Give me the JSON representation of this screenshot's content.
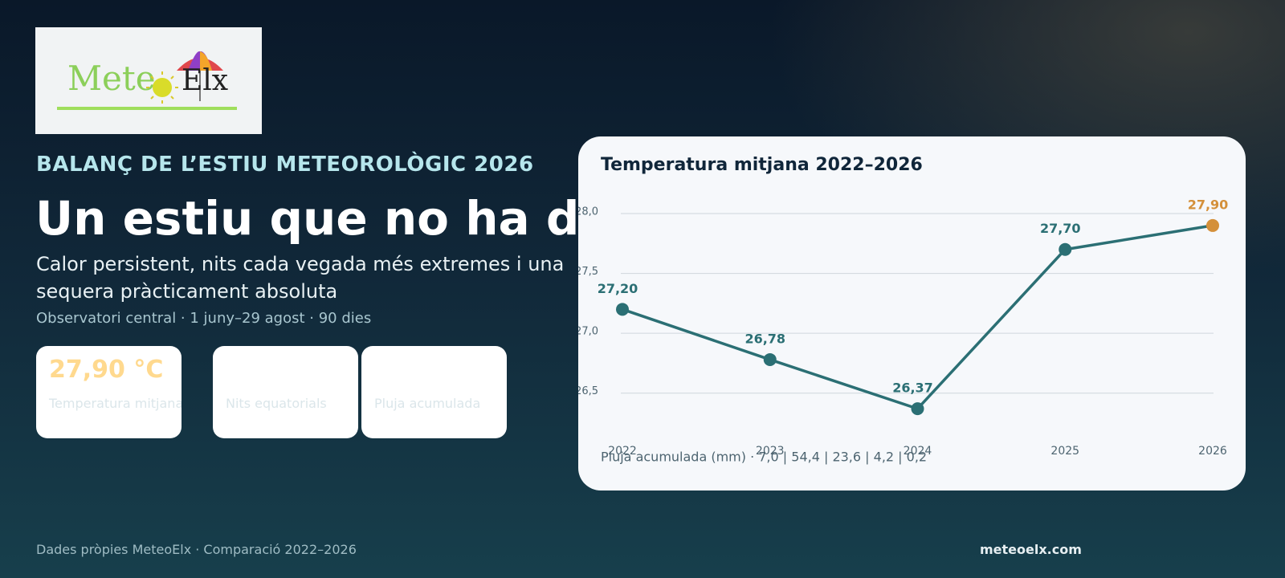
{
  "logo": {
    "left": "Mete",
    "right": "Elx"
  },
  "header": {
    "kicker": "BALANÇ DE L’ESTIU METEOROLÒGIC 2026",
    "headline": "Un estiu que no ha dormit",
    "subtitle": "Calor persistent, nits cada vegada més extremes i una sequera pràcticament absoluta",
    "meta": "Observatori central · 1 juny–29 agost · 90 dies"
  },
  "cards": [
    {
      "value": "27,90 °C",
      "label": "Temperatura mitjana"
    },
    {
      "label": "Nits equatorials"
    },
    {
      "label": "Pluja acumulada"
    }
  ],
  "chart_data": {
    "type": "line",
    "title": "Temperatura mitjana 2022–2026",
    "categories": [
      "2022",
      "2023",
      "2024",
      "2025",
      "2026"
    ],
    "values": [
      27.2,
      26.78,
      26.37,
      27.7,
      27.9
    ],
    "value_labels": [
      "27,20",
      "26,78",
      "26,37",
      "27,70",
      "27,90"
    ],
    "color": "#2b6f74",
    "point_colors": [
      "#2b6f74",
      "#2b6f74",
      "#2b6f74",
      "#2b6f74",
      "#d4903a"
    ],
    "ylim": [
      26.25,
      28.0
    ],
    "yticks": [
      {
        "value": 26.5,
        "label": "26,5"
      },
      {
        "value": 27.0,
        "label": "27,0"
      },
      {
        "value": 27.5,
        "label": "27,5"
      },
      {
        "value": 28.0,
        "label": "28,0"
      }
    ],
    "grid": true,
    "note": "Pluja acumulada (mm) · 7,0 | 54,4 | 23,6 | 4,2 | 0,2"
  },
  "footer": {
    "left": "Dades pròpies MeteoElx · Comparació 2022–2026",
    "right": "meteoelx.com"
  }
}
